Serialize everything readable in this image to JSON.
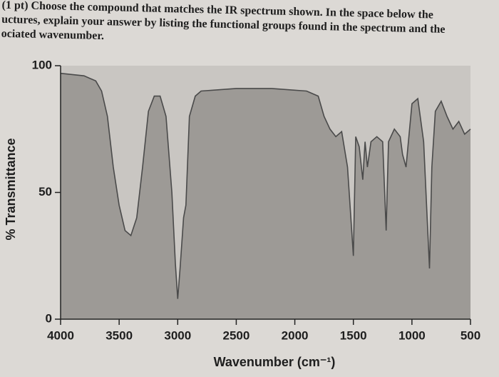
{
  "chart_data": {
    "type": "line",
    "annotations": [
      "(1 pt) Choose the compound that matches the IR spectrum shown. In the space below the",
      "uctures, explain your answer by listing the functional groups found in the spectrum and the",
      "ociated wavenumber."
    ],
    "x_label": "Wavenumber (cm⁻¹)",
    "y_label": "% Transmittance",
    "xlim": [
      4000,
      500
    ],
    "xticks": [
      4000,
      3500,
      3000,
      2500,
      2000,
      1500,
      1000,
      500
    ],
    "ylim": [
      0,
      100
    ],
    "yticks": [
      0,
      50,
      100
    ],
    "series": [
      {
        "color": "#4a4a4a",
        "x": [
          4000,
          3800,
          3700,
          3650,
          3600,
          3550,
          3500,
          3450,
          3400,
          3350,
          3300,
          3250,
          3200,
          3150,
          3100,
          3050,
          3020,
          3000,
          2980,
          2950,
          2930,
          2900,
          2850,
          2800,
          2500,
          2200,
          1900,
          1800,
          1750,
          1700,
          1650,
          1600,
          1550,
          1500,
          1480,
          1450,
          1420,
          1400,
          1380,
          1350,
          1300,
          1250,
          1220,
          1200,
          1150,
          1100,
          1080,
          1050,
          1030,
          1000,
          950,
          900,
          870,
          850,
          830,
          800,
          750,
          700,
          650,
          600,
          550,
          500
        ],
        "values": [
          97,
          96,
          94,
          90,
          80,
          60,
          45,
          35,
          33,
          40,
          60,
          82,
          88,
          88,
          80,
          50,
          22,
          8,
          20,
          40,
          45,
          80,
          88,
          90,
          91,
          91,
          90,
          88,
          80,
          75,
          72,
          74,
          60,
          25,
          72,
          68,
          55,
          70,
          60,
          70,
          72,
          70,
          35,
          70,
          75,
          72,
          65,
          60,
          70,
          85,
          87,
          70,
          40,
          20,
          60,
          82,
          86,
          80,
          75,
          78,
          73,
          75
        ]
      }
    ]
  }
}
